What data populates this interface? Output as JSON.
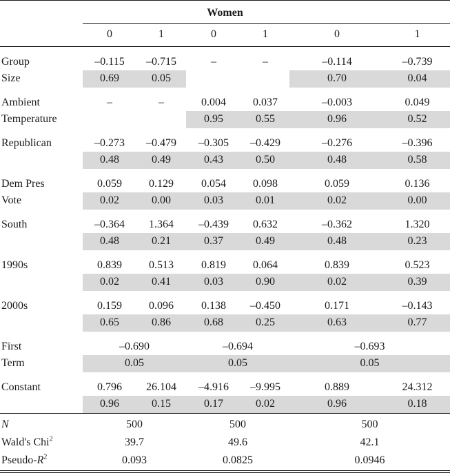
{
  "table": {
    "group_header": "Women",
    "column_headers": [
      "0",
      "1",
      "0",
      "1",
      "0",
      "1"
    ],
    "colors": {
      "shade": "#d9d9d9",
      "rule": "#1a1a1a",
      "text": "#1a1a1a"
    },
    "rows": [
      {
        "label": [
          {
            "t": "Group"
          }
        ],
        "label2": [
          {
            "t": "Size"
          }
        ],
        "values": [
          "–0.115",
          "–0.715",
          "–",
          "–",
          "–0.114",
          "–0.739"
        ],
        "pvalues": [
          "0.69",
          "0.05",
          "",
          "",
          "0.70",
          "0.04"
        ],
        "shade": [
          1,
          1,
          0,
          0,
          1,
          1
        ]
      },
      {
        "label": [
          {
            "t": "Ambient"
          }
        ],
        "label2": [
          {
            "t": "Temperature"
          }
        ],
        "values": [
          "–",
          "–",
          "0.004",
          "0.037",
          "–0.003",
          "0.049"
        ],
        "pvalues": [
          "",
          "",
          "0.95",
          "0.55",
          "0.96",
          "0.52"
        ],
        "shade": [
          0,
          0,
          1,
          1,
          1,
          1
        ]
      },
      {
        "label": [
          {
            "t": "Republican"
          }
        ],
        "label2": [],
        "values": [
          "–0.273",
          "–0.479",
          "–0.305",
          "–0.429",
          "–0.276",
          "–0.396"
        ],
        "pvalues": [
          "0.48",
          "0.49",
          "0.43",
          "0.50",
          "0.48",
          "0.58"
        ],
        "shade": [
          1,
          1,
          1,
          1,
          1,
          1
        ]
      },
      {
        "label": [
          {
            "t": "Dem Pres"
          }
        ],
        "label2": [
          {
            "t": "Vote"
          }
        ],
        "values": [
          "0.059",
          "0.129",
          "0.054",
          "0.098",
          "0.059",
          "0.136"
        ],
        "pvalues": [
          "0.02",
          "0.00",
          "0.03",
          "0.01",
          "0.02",
          "0.00"
        ],
        "shade": [
          1,
          1,
          1,
          1,
          1,
          1
        ]
      },
      {
        "label": [
          {
            "t": "South"
          }
        ],
        "label2": [],
        "values": [
          "–0.364",
          "1.364",
          "–0.439",
          "0.632",
          "–0.362",
          "1.320"
        ],
        "pvalues": [
          "0.48",
          "0.21",
          "0.37",
          "0.49",
          "0.48",
          "0.23"
        ],
        "shade": [
          1,
          1,
          1,
          1,
          1,
          1
        ]
      },
      {
        "label": [
          {
            "t": "1990s"
          }
        ],
        "label2": [],
        "values": [
          "0.839",
          "0.513",
          "0.819",
          "0.064",
          "0.839",
          "0.523"
        ],
        "pvalues": [
          "0.02",
          "0.41",
          "0.03",
          "0.90",
          "0.02",
          "0.39"
        ],
        "shade": [
          1,
          1,
          1,
          1,
          1,
          1
        ]
      },
      {
        "label": [
          {
            "t": "2000s"
          }
        ],
        "label2": [],
        "values": [
          "0.159",
          "0.096",
          "0.138",
          "–0.450",
          "0.171",
          "–0.143"
        ],
        "pvalues": [
          "0.65",
          "0.86",
          "0.68",
          "0.25",
          "0.63",
          "0.77"
        ],
        "shade": [
          1,
          1,
          1,
          1,
          1,
          1
        ]
      },
      {
        "label": [
          {
            "t": "First"
          }
        ],
        "label2": [
          {
            "t": "Term"
          }
        ],
        "values": [
          "–0.690",
          "–0.694",
          "–0.693"
        ],
        "pvalues": [
          "0.05",
          "0.05",
          "0.05"
        ],
        "shade": [
          1,
          1,
          1
        ]
      },
      {
        "label": [
          {
            "t": "Constant"
          }
        ],
        "label2": [],
        "values": [
          "0.796",
          "26.104",
          "–4.916",
          "–9.995",
          "0.889",
          "24.312"
        ],
        "pvalues": [
          "0.96",
          "0.15",
          "0.17",
          "0.02",
          "0.96",
          "0.18"
        ],
        "shade": [
          1,
          1,
          1,
          1,
          1,
          1
        ]
      },
      {
        "label": [
          {
            "t": "N",
            "s": "i"
          }
        ],
        "values": [
          "500",
          "500",
          "500"
        ]
      },
      {
        "label": [
          {
            "t": "Wald's Chi"
          },
          {
            "t": "2",
            "s": "sup"
          }
        ],
        "values": [
          "39.7",
          "49.6",
          "42.1"
        ]
      },
      {
        "label": [
          {
            "t": "Pseudo-"
          },
          {
            "t": "R",
            "s": "i"
          },
          {
            "t": "2",
            "s": "sup"
          }
        ],
        "values": [
          "0.093",
          "0.0825",
          "0.0946"
        ]
      }
    ]
  }
}
